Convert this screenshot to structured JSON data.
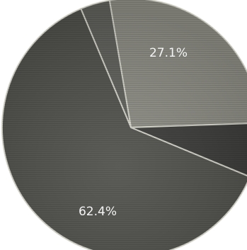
{
  "chart_data": {
    "type": "pie",
    "start_angle_deg": -2,
    "direction": "counterclockwise",
    "slices": [
      {
        "percent": 27.1,
        "label": "27.1%",
        "color": "#8a8a82"
      },
      {
        "percent": 3.7,
        "label": "",
        "color": "#5e5e5a"
      },
      {
        "percent": 62.4,
        "label": "62.4%",
        "color": "#4f4f4b"
      },
      {
        "percent": 6.8,
        "label": "",
        "color": "#3a3a38"
      }
    ],
    "edge_color": "#d2d2c8",
    "legend": "none"
  }
}
